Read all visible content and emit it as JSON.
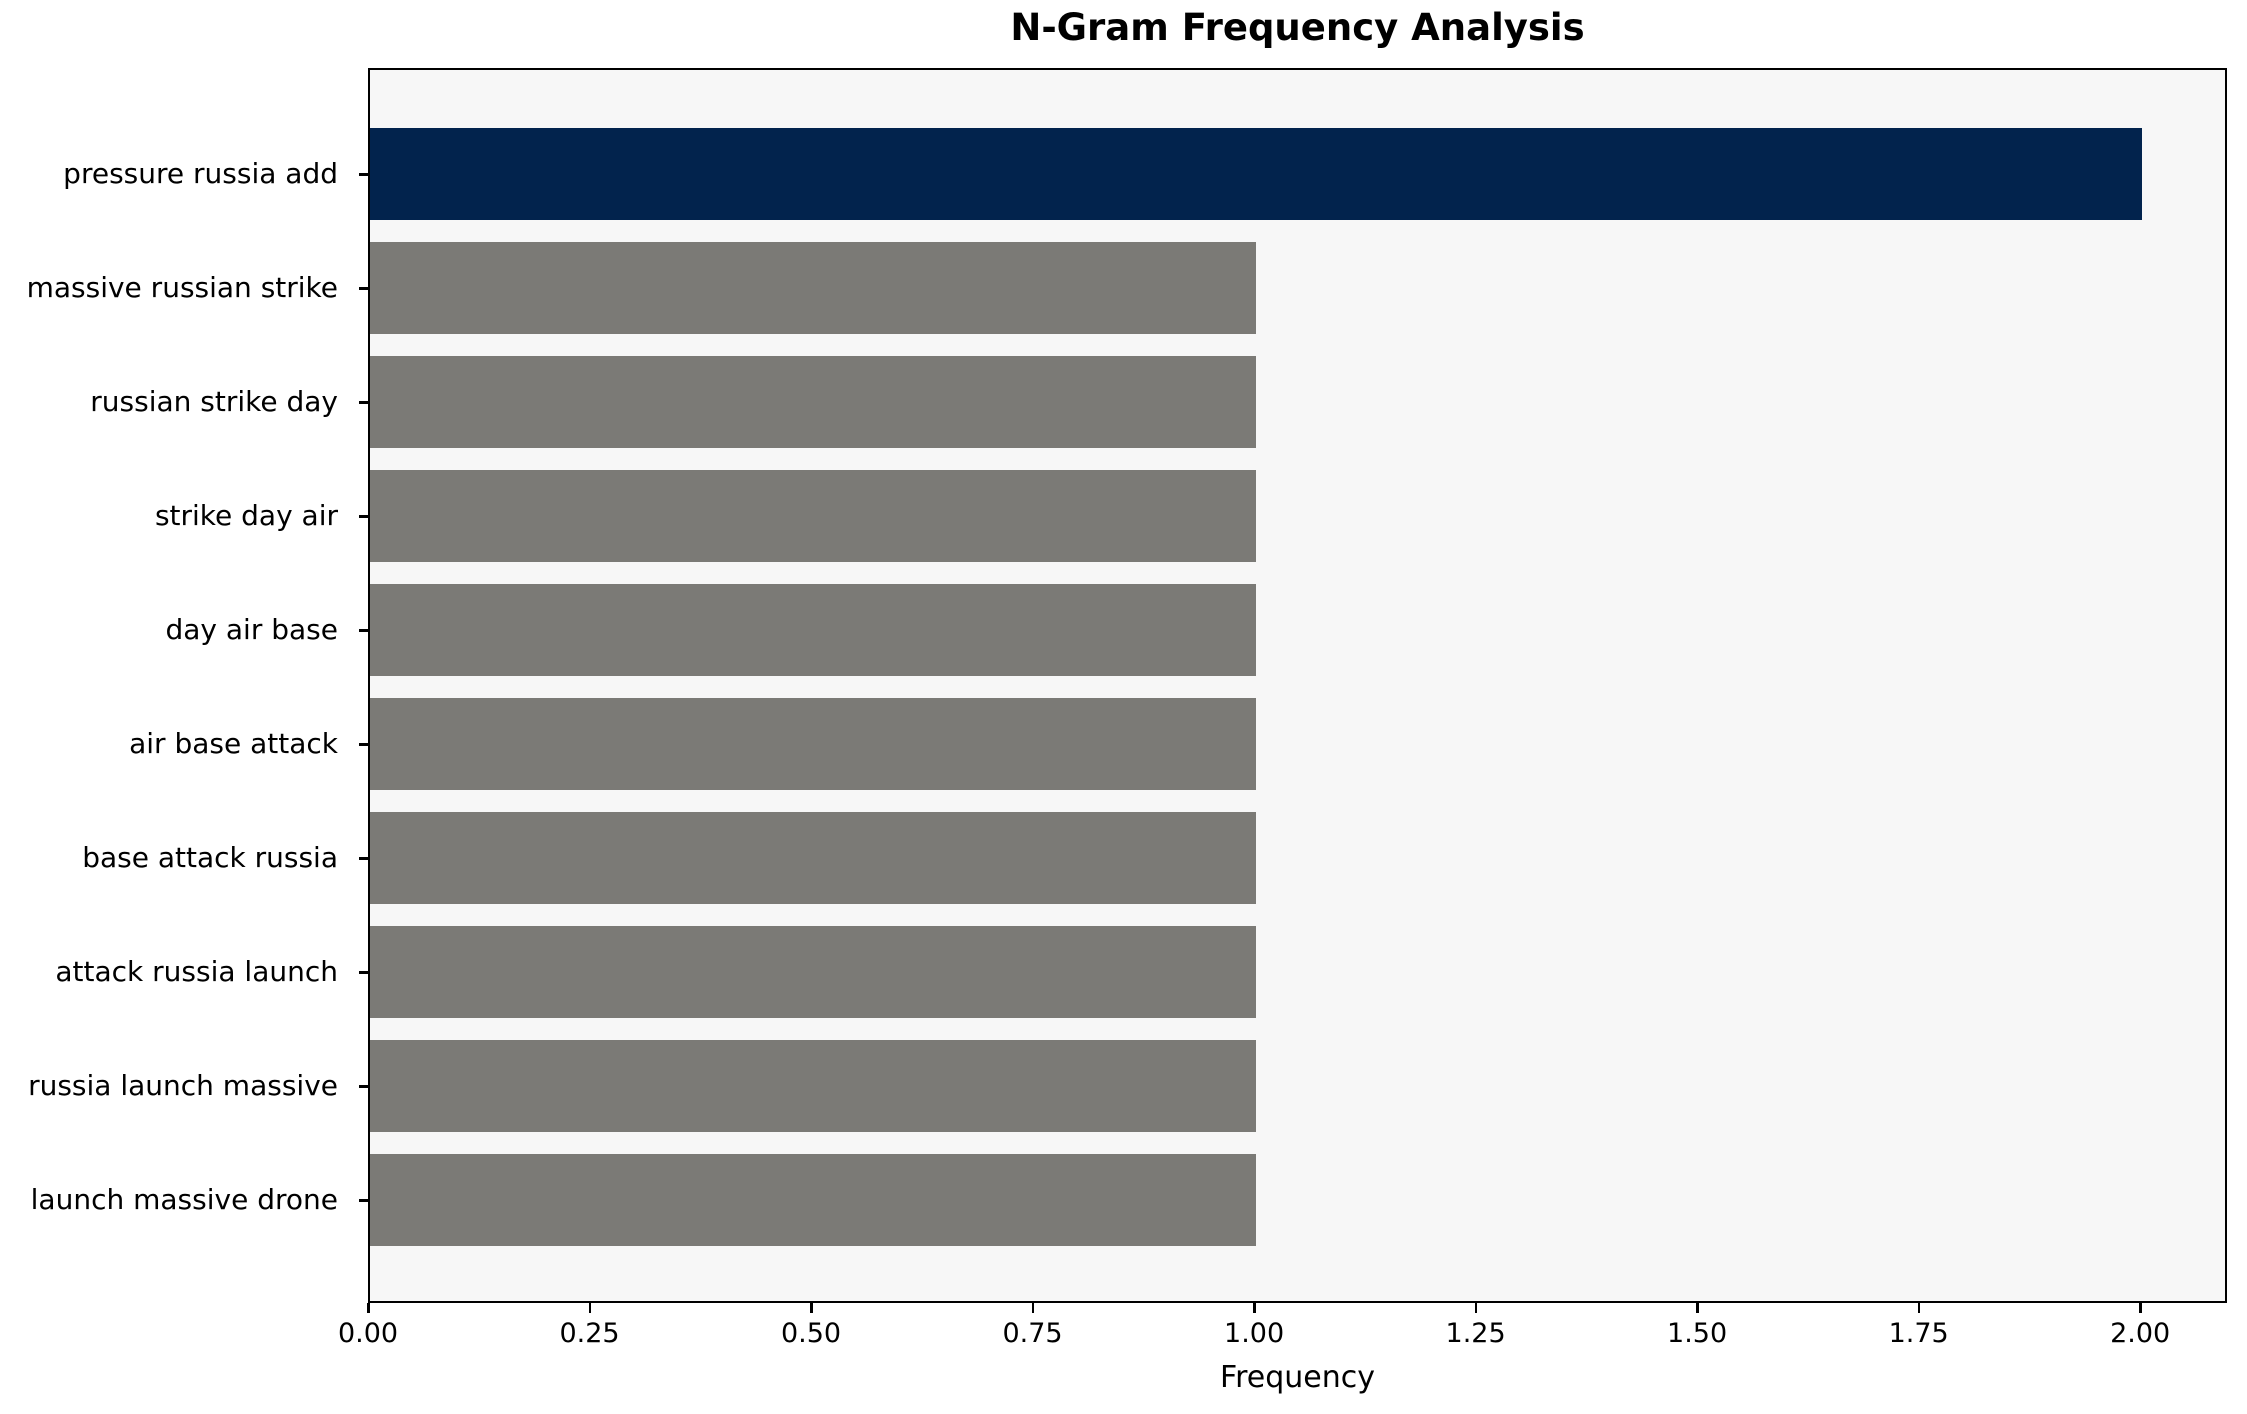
{
  "chart_data": {
    "type": "bar",
    "orientation": "horizontal",
    "title": "N-Gram Frequency Analysis",
    "xlabel": "Frequency",
    "ylabel": "",
    "categories": [
      "pressure russia add",
      "massive russian strike",
      "russian strike day",
      "strike day air",
      "day air base",
      "air base attack",
      "base attack russia",
      "attack russia launch",
      "russia launch massive",
      "launch massive drone"
    ],
    "values": [
      2,
      1,
      1,
      1,
      1,
      1,
      1,
      1,
      1,
      1
    ],
    "bar_colors": [
      "#02234d",
      "#7b7a76",
      "#7b7a76",
      "#7b7a76",
      "#7b7a76",
      "#7b7a76",
      "#7b7a76",
      "#7b7a76",
      "#7b7a76",
      "#7b7a76"
    ],
    "xtick_labels": [
      "0.00",
      "0.25",
      "0.50",
      "0.75",
      "1.00",
      "1.25",
      "1.50",
      "1.75",
      "2.00"
    ],
    "xtick_values": [
      0,
      0.25,
      0.5,
      0.75,
      1.0,
      1.25,
      1.5,
      1.75,
      2.0
    ],
    "xlim": [
      0,
      2.098
    ],
    "grid": false,
    "legend": "none",
    "colors": {
      "highlight_bar": "#02234d",
      "default_bar": "#7b7a76",
      "plot_background": "#f7f7f7",
      "figure_background": "#ffffff",
      "frame": "#000000",
      "text": "#000000"
    }
  }
}
